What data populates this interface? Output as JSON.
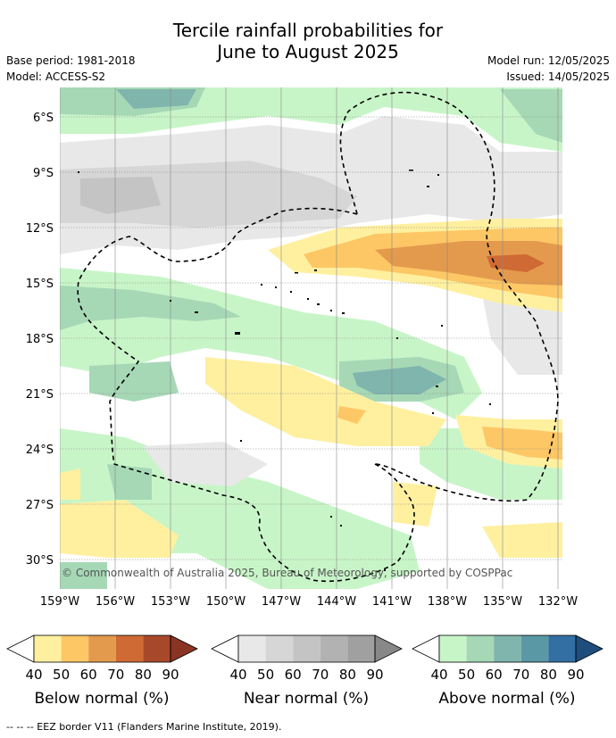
{
  "header": {
    "title_line1": "Tercile rainfall probabilities for",
    "title_line2": "June to August 2025",
    "base_period": "Base period: 1981-2018",
    "model": "Model: ACCESS-S2",
    "model_run": "Model run: 12/05/2025",
    "issued": "Issued: 14/05/2025"
  },
  "map": {
    "lat_labels": [
      "6°S",
      "9°S",
      "12°S",
      "15°S",
      "18°S",
      "21°S",
      "24°S",
      "27°S",
      "30°S"
    ],
    "lon_labels": [
      "159°W",
      "156°W",
      "153°W",
      "150°W",
      "147°W",
      "144°W",
      "141°W",
      "138°W",
      "135°W",
      "132°W"
    ],
    "copyright": "© Commonwealth of Australia 2025, Bureau of Meteorology, supported by COSPPac",
    "land_color": "#ffffff",
    "eez_style": "dashed-black"
  },
  "legend": {
    "ticks": [
      "40",
      "50",
      "60",
      "70",
      "80",
      "90"
    ],
    "below": {
      "label": "Below normal (%)",
      "colors": [
        "#fff0a0",
        "#fdc766",
        "#e49a4c",
        "#cf6a34",
        "#a8482a",
        "#8a3424"
      ]
    },
    "near": {
      "label": "Near normal (%)",
      "colors": [
        "#e8e8e8",
        "#d6d6d6",
        "#c4c4c4",
        "#b2b2b2",
        "#a0a0a0",
        "#888888"
      ]
    },
    "above": {
      "label": "Above normal (%)",
      "colors": [
        "#c8f5c8",
        "#a6d8b6",
        "#7fb5ac",
        "#5b98a6",
        "#336fa3",
        "#1f4e7e"
      ]
    }
  },
  "footer": {
    "eez_note": "--  --  -- EEZ border V11 (Flanders Marine Institute, 2019)."
  }
}
